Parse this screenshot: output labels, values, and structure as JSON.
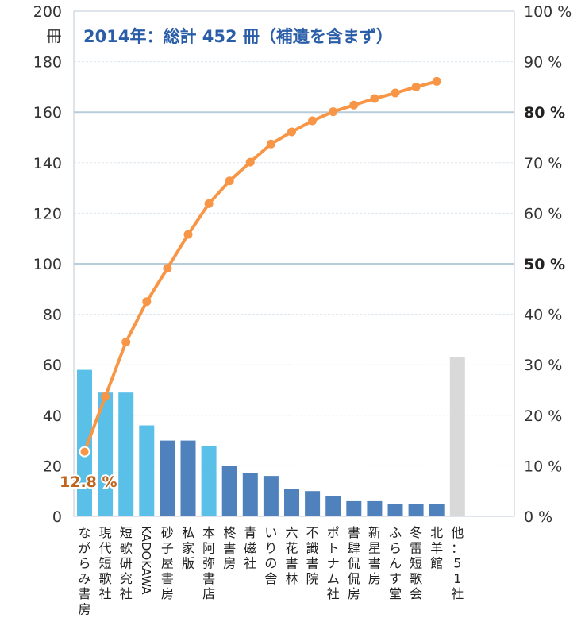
{
  "chart_data": {
    "type": "bar",
    "title": "2014年：総計 452 冊（補遺を含まず）",
    "y_unit": "冊",
    "ylim": [
      0,
      200
    ],
    "y_ticks": [
      "0",
      "20",
      "40",
      "60",
      "80",
      "100",
      "120",
      "140",
      "160",
      "180",
      "200"
    ],
    "y2lim": [
      0,
      100
    ],
    "y2_ticks": [
      "0 %",
      "10 %",
      "20 %",
      "30 %",
      "40 %",
      "50 %",
      "60 %",
      "70 %",
      "80 %",
      "90 %",
      "100 %"
    ],
    "y2_bold_ticks": [
      "50 %",
      "80 %"
    ],
    "categories": [
      "ながらみ書房",
      "現代短歌社",
      "短歌研究社",
      "KADOKAWA",
      "砂子屋書房",
      "私家版",
      "本阿弥書店",
      "柊書房",
      "青磁社",
      "いりの舎",
      "六花書林",
      "不識書院",
      "ポトナム社",
      "書肆侃侃房",
      "新星書房",
      "ふらんす堂",
      "冬雷短歌会",
      "北羊館",
      "他：51社"
    ],
    "values": [
      58,
      49,
      49,
      36,
      30,
      30,
      28,
      20,
      17,
      16,
      11,
      10,
      8,
      6,
      6,
      5,
      5,
      5,
      63
    ],
    "bar_colors": [
      "#5bc0e8",
      "#5bc0e8",
      "#5bc0e8",
      "#5bc0e8",
      "#4f81bd",
      "#4f81bd",
      "#5bc0e8",
      "#4f81bd",
      "#4f81bd",
      "#4f81bd",
      "#4f81bd",
      "#4f81bd",
      "#4f81bd",
      "#4f81bd",
      "#4f81bd",
      "#4f81bd",
      "#4f81bd",
      "#4f81bd",
      "#d9d9d9"
    ],
    "cumulative_percent": [
      12.8,
      23.7,
      34.5,
      42.5,
      49.1,
      55.8,
      61.9,
      66.4,
      70.1,
      73.7,
      76.1,
      78.3,
      80.1,
      81.4,
      82.7,
      83.8,
      85.0,
      86.1
    ],
    "line_color": "#f79646",
    "annotation": "12.8 %",
    "grid": true
  }
}
